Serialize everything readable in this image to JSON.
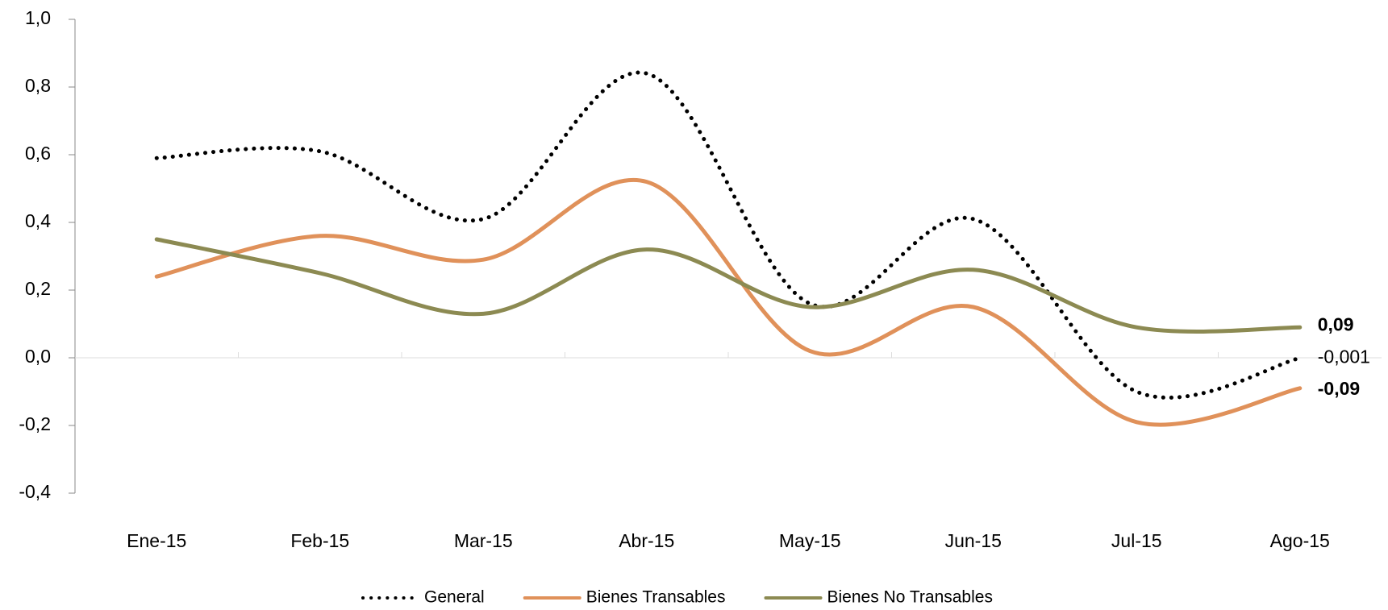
{
  "chart_data": {
    "type": "line",
    "categories": [
      "Ene-15",
      "Feb-15",
      "Mar-15",
      "Abr-15",
      "May-15",
      "Jun-15",
      "Jul-15",
      "Ago-15"
    ],
    "series": [
      {
        "name": "General",
        "color": "#000000",
        "dash": "dotted",
        "values": [
          0.59,
          0.61,
          0.41,
          0.84,
          0.16,
          0.41,
          -0.1,
          -0.001
        ],
        "value_labels": [
          null,
          null,
          null,
          null,
          null,
          null,
          null,
          "-0,001"
        ]
      },
      {
        "name": "Bienes Transables",
        "color": "#e0915a",
        "values": [
          0.24,
          0.36,
          0.29,
          0.52,
          0.02,
          0.15,
          -0.19,
          -0.09
        ],
        "value_labels": [
          null,
          null,
          null,
          null,
          null,
          null,
          null,
          "-0,09"
        ]
      },
      {
        "name": "Bienes No Transables",
        "color": "#8c8a52",
        "values": [
          0.35,
          0.25,
          0.13,
          0.32,
          0.15,
          0.26,
          0.09,
          0.09
        ],
        "value_labels": [
          null,
          null,
          null,
          null,
          null,
          null,
          null,
          "0,09"
        ]
      }
    ],
    "ylim": [
      -0.4,
      1.0
    ],
    "yticks": [
      {
        "value": -0.4,
        "label": "-0,4"
      },
      {
        "value": -0.2,
        "label": "-0,2"
      },
      {
        "value": 0,
        "label": "0,0"
      },
      {
        "value": 0.2,
        "label": "0,2"
      },
      {
        "value": 0.4,
        "label": "0,4"
      },
      {
        "value": 0.6,
        "label": "0,6"
      },
      {
        "value": 0.8,
        "label": "0,8"
      },
      {
        "value": 1.0,
        "label": "1,0"
      }
    ],
    "legend": "bottom",
    "smooth": true
  }
}
